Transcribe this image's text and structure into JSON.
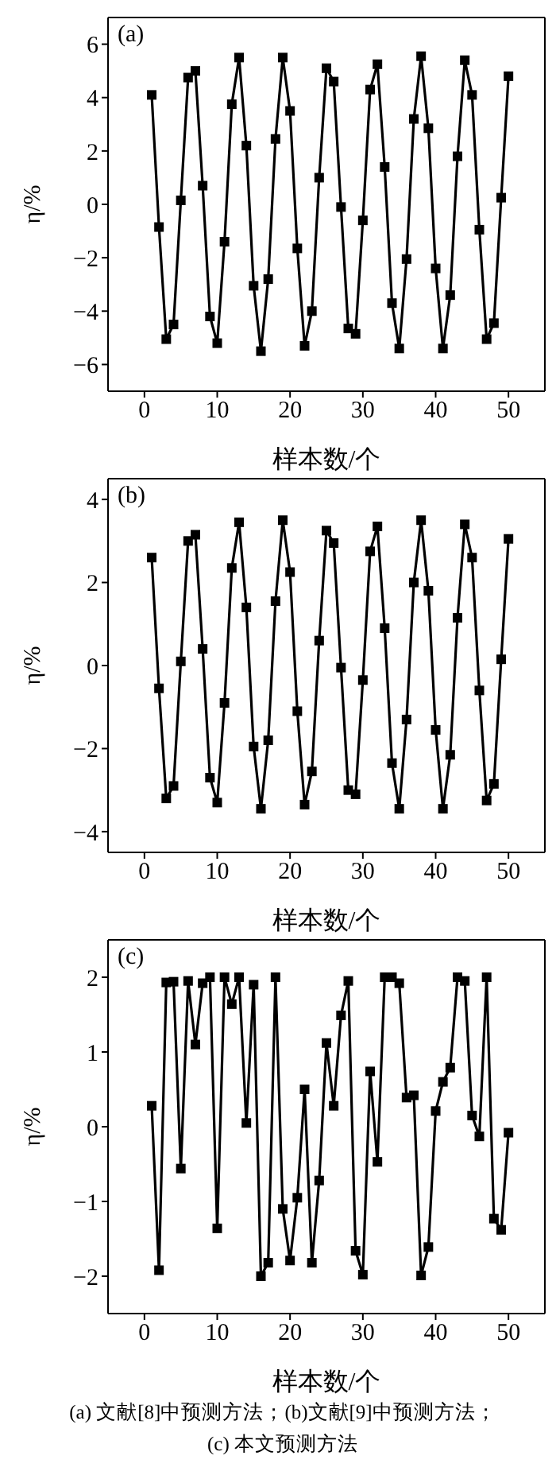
{
  "chart_data": [
    {
      "type": "line",
      "xlabel": "样本数/个",
      "ylabel": "η/%",
      "annotations": [
        "(a)"
      ],
      "marker": "square",
      "line_style": "solid",
      "x": [
        1,
        2,
        3,
        4,
        5,
        6,
        7,
        8,
        9,
        10,
        11,
        12,
        13,
        14,
        15,
        16,
        17,
        18,
        19,
        20,
        21,
        22,
        23,
        24,
        25,
        26,
        27,
        28,
        29,
        30,
        31,
        32,
        33,
        34,
        35,
        36,
        37,
        38,
        39,
        40,
        41,
        42,
        43,
        44,
        45,
        46,
        47,
        48,
        49,
        50
      ],
      "series": [
        {
          "color": "#000000",
          "values": [
            4.1,
            -0.85,
            -5.05,
            -4.5,
            0.15,
            4.75,
            5.0,
            0.7,
            -4.2,
            -5.2,
            -1.4,
            3.75,
            5.5,
            2.2,
            -3.05,
            -5.5,
            -2.8,
            2.45,
            5.5,
            3.5,
            -1.65,
            -5.3,
            -4.0,
            1.0,
            5.1,
            4.6,
            -0.1,
            -4.65,
            -4.85,
            -0.6,
            4.3,
            5.25,
            1.4,
            -3.7,
            -5.4,
            -2.05,
            3.2,
            5.55,
            2.85,
            -2.4,
            -5.4,
            -3.4,
            1.8,
            5.4,
            4.1,
            -0.95,
            -5.05,
            -4.45,
            0.25,
            4.8
          ]
        }
      ],
      "xlim": [
        -5,
        55
      ],
      "xticks": [
        0,
        10,
        20,
        30,
        40,
        50
      ],
      "ylim": [
        -7,
        7
      ],
      "yticks": [
        -6,
        -4,
        -2,
        0,
        2,
        4,
        6
      ]
    },
    {
      "type": "line",
      "xlabel": "样本数/个",
      "ylabel": "η/%",
      "annotations": [
        "(b)"
      ],
      "marker": "square",
      "line_style": "solid",
      "x": [
        1,
        2,
        3,
        4,
        5,
        6,
        7,
        8,
        9,
        10,
        11,
        12,
        13,
        14,
        15,
        16,
        17,
        18,
        19,
        20,
        21,
        22,
        23,
        24,
        25,
        26,
        27,
        28,
        29,
        30,
        31,
        32,
        33,
        34,
        35,
        36,
        37,
        38,
        39,
        40,
        41,
        42,
        43,
        44,
        45,
        46,
        47,
        48,
        49,
        50
      ],
      "series": [
        {
          "color": "#000000",
          "values": [
            2.6,
            -0.55,
            -3.2,
            -2.9,
            0.1,
            3.0,
            3.15,
            0.4,
            -2.7,
            -3.3,
            -0.9,
            2.35,
            3.45,
            1.4,
            -1.95,
            -3.45,
            -1.8,
            1.55,
            3.5,
            2.25,
            -1.1,
            -3.35,
            -2.55,
            0.6,
            3.25,
            2.95,
            -0.05,
            -3.0,
            -3.1,
            -0.35,
            2.75,
            3.35,
            0.9,
            -2.35,
            -3.45,
            -1.3,
            2.0,
            3.5,
            1.8,
            -1.55,
            -3.45,
            -2.15,
            1.15,
            3.4,
            2.6,
            -0.6,
            -3.25,
            -2.85,
            0.15,
            3.05
          ]
        }
      ],
      "xlim": [
        -5,
        55
      ],
      "xticks": [
        0,
        10,
        20,
        30,
        40,
        50
      ],
      "ylim": [
        -4.5,
        4.5
      ],
      "yticks": [
        -4,
        -2,
        0,
        2,
        4
      ]
    },
    {
      "type": "line",
      "xlabel": "样本数/个",
      "ylabel": "η/%",
      "annotations": [
        "(c)",
        "(a) 文献[8]中预测方法；(b)文献[9]中预测方法；",
        "(c) 本文预测方法"
      ],
      "marker": "square",
      "line_style": "solid",
      "x": [
        1,
        2,
        3,
        4,
        5,
        6,
        7,
        8,
        9,
        10,
        11,
        12,
        13,
        14,
        15,
        16,
        17,
        18,
        19,
        20,
        21,
        22,
        23,
        24,
        25,
        26,
        27,
        28,
        29,
        30,
        31,
        32,
        33,
        34,
        35,
        36,
        37,
        38,
        39,
        40,
        41,
        42,
        43,
        44,
        45,
        46,
        47,
        48,
        49,
        50
      ],
      "series": [
        {
          "color": "#000000",
          "values": [
            0.28,
            -1.92,
            1.93,
            1.94,
            -0.56,
            1.95,
            1.1,
            1.92,
            2.0,
            -1.36,
            2.0,
            1.64,
            2.0,
            0.05,
            1.9,
            -2.0,
            -1.82,
            2.0,
            -1.1,
            -1.79,
            -0.95,
            0.5,
            -1.82,
            -0.72,
            1.12,
            0.28,
            1.49,
            1.95,
            -1.66,
            -1.98,
            0.74,
            -0.47,
            2.0,
            2.0,
            1.92,
            0.39,
            0.42,
            -1.99,
            -1.61,
            0.21,
            0.6,
            0.79,
            2.0,
            1.95,
            0.15,
            -0.13,
            2.0,
            -1.23,
            -1.38,
            -0.08
          ]
        }
      ],
      "xlim": [
        -5,
        55
      ],
      "xticks": [
        0,
        10,
        20,
        30,
        40,
        50
      ],
      "ylim": [
        -2.5,
        2.5
      ],
      "yticks": [
        -2,
        -1,
        0,
        1,
        2
      ]
    }
  ]
}
